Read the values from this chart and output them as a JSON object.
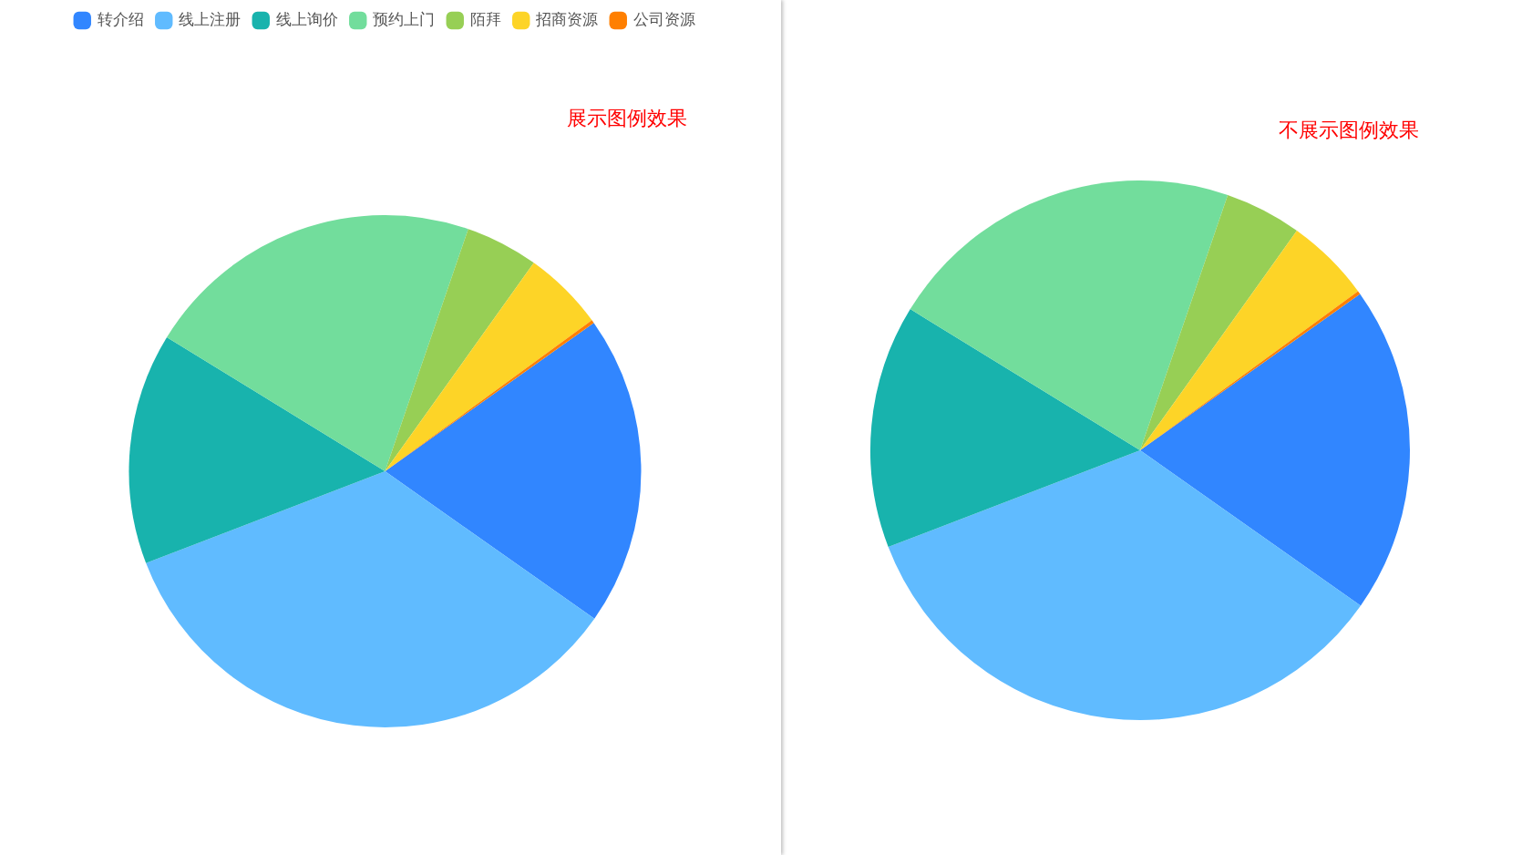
{
  "chart_data": [
    {
      "type": "pie",
      "title": "展示图例效果",
      "legend": "top",
      "categories": [
        "转介绍",
        "线上注册",
        "线上询价",
        "预约上门",
        "陌拜",
        "招商资源",
        "公司资源"
      ],
      "values": [
        19.6,
        34.4,
        14.6,
        21.5,
        4.6,
        5.1,
        0.2
      ],
      "colors": [
        "#3186ff",
        "#60bbff",
        "#18b3ad",
        "#72dd9c",
        "#97cf55",
        "#fdd427",
        "#ff7f00"
      ]
    },
    {
      "type": "pie",
      "title": "不展示图例效果",
      "legend": false,
      "categories": [
        null,
        null,
        null,
        null,
        null,
        null,
        null
      ],
      "values": [
        19.6,
        34.4,
        14.6,
        21.5,
        4.6,
        5.1,
        0.2
      ],
      "colors": [
        "#3186ff",
        "#60bbff",
        "#18b3ad",
        "#72dd9c",
        "#97cf55",
        "#fdd427",
        "#ff7f00"
      ]
    }
  ]
}
